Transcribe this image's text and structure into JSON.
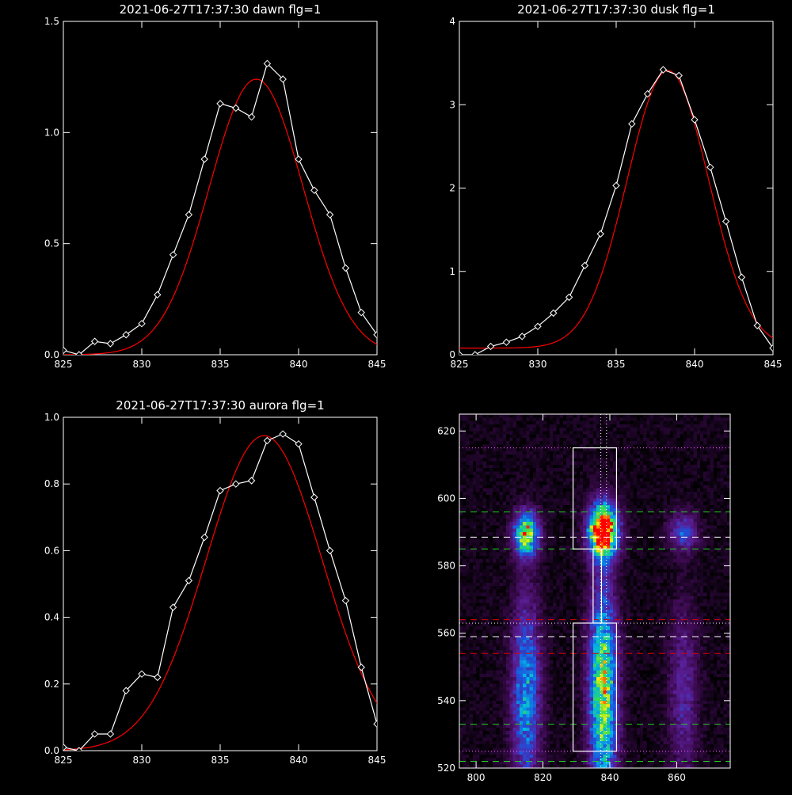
{
  "chart_data": [
    {
      "type": "line",
      "title": "2021-06-27T17:37:30 dawn flg=1",
      "xlim": [
        825,
        845
      ],
      "ylim": [
        0,
        1.5
      ],
      "xticks": [
        "825",
        "830",
        "835",
        "840",
        "845"
      ],
      "yticks": [
        "0.0",
        "0.5",
        "1.0",
        "1.5"
      ],
      "xtick_values": [
        825,
        830,
        835,
        840,
        845
      ],
      "ytick_values": [
        0,
        0.5,
        1.0,
        1.5
      ],
      "series": [
        {
          "color": "#ffffff",
          "marker": "diamond",
          "x": [
            825,
            826,
            827,
            828,
            829,
            830,
            831,
            832,
            833,
            834,
            835,
            836,
            837,
            838,
            839,
            840,
            841,
            842,
            843,
            844,
            845
          ],
          "y": [
            0.02,
            0.0,
            0.06,
            0.05,
            0.09,
            0.14,
            0.27,
            0.45,
            0.63,
            0.88,
            1.13,
            1.11,
            1.07,
            1.31,
            1.24,
            0.88,
            0.74,
            0.63,
            0.39,
            0.19,
            0.09
          ]
        },
        {
          "color": "#ff0000",
          "marker": "none",
          "fit": "gaussian",
          "amp": 1.24,
          "mu": 837.3,
          "sigma": 3.0,
          "base": 0.0
        }
      ]
    },
    {
      "type": "line",
      "title": "2021-06-27T17:37:30 dusk flg=1",
      "xlim": [
        825,
        845
      ],
      "ylim": [
        0,
        4
      ],
      "xticks": [
        "825",
        "830",
        "835",
        "840",
        "845"
      ],
      "yticks": [
        "0",
        "1",
        "2",
        "3",
        "4"
      ],
      "xtick_values": [
        825,
        830,
        835,
        840,
        845
      ],
      "ytick_values": [
        0,
        1,
        2,
        3,
        4
      ],
      "series": [
        {
          "color": "#ffffff",
          "marker": "diamond",
          "x": [
            825,
            826,
            827,
            828,
            829,
            830,
            831,
            832,
            833,
            834,
            835,
            836,
            837,
            838,
            839,
            840,
            841,
            842,
            843,
            844,
            845
          ],
          "y": [
            0.0,
            0.0,
            0.1,
            0.15,
            0.22,
            0.34,
            0.5,
            0.69,
            1.07,
            1.45,
            2.03,
            2.77,
            3.13,
            3.42,
            3.35,
            2.82,
            2.25,
            1.6,
            0.93,
            0.35,
            0.08
          ]
        },
        {
          "color": "#ff0000",
          "marker": "none",
          "fit": "gaussian",
          "amp": 3.33,
          "mu": 838.3,
          "sigma": 2.6,
          "base": 0.08
        }
      ]
    },
    {
      "type": "line",
      "title": "2021-06-27T17:37:30 aurora flg=1",
      "xlim": [
        825,
        845
      ],
      "ylim": [
        0,
        1.0
      ],
      "xticks": [
        "825",
        "830",
        "835",
        "840",
        "845"
      ],
      "yticks": [
        "0.0",
        "0.2",
        "0.4",
        "0.6",
        "0.8",
        "1.0"
      ],
      "xtick_values": [
        825,
        830,
        835,
        840,
        845
      ],
      "ytick_values": [
        0,
        0.2,
        0.4,
        0.6,
        0.8,
        1.0
      ],
      "series": [
        {
          "color": "#ffffff",
          "marker": "diamond",
          "x": [
            825,
            826,
            827,
            828,
            829,
            830,
            831,
            832,
            833,
            834,
            835,
            836,
            837,
            838,
            839,
            840,
            841,
            842,
            843,
            844,
            845
          ],
          "y": [
            0.01,
            0.0,
            0.05,
            0.05,
            0.18,
            0.23,
            0.22,
            0.43,
            0.51,
            0.64,
            0.78,
            0.8,
            0.81,
            0.93,
            0.95,
            0.92,
            0.76,
            0.6,
            0.45,
            0.25,
            0.08
          ]
        },
        {
          "color": "#ff0000",
          "marker": "none",
          "fit": "gaussian",
          "amp": 0.945,
          "mu": 837.8,
          "sigma": 3.7,
          "base": 0.0
        }
      ]
    },
    {
      "type": "heatmap",
      "xlim": [
        795,
        876
      ],
      "ylim": [
        520,
        625
      ],
      "xticks": [
        "800",
        "820",
        "840",
        "860"
      ],
      "yticks": [
        "520",
        "540",
        "560",
        "580",
        "600",
        "620"
      ],
      "xtick_values": [
        800,
        820,
        840,
        860
      ],
      "ytick_values": [
        520,
        540,
        560,
        580,
        600,
        620
      ],
      "colormap": [
        "#000000",
        "#3c0a50",
        "#5a1e96",
        "#1e50dc",
        "#00b4e6",
        "#32dc5a",
        "#f0f000",
        "#ff0000"
      ],
      "emission_lines": [
        {
          "x": 815,
          "y": 589.5,
          "sx": 2.6,
          "sy": 4.5,
          "peak": 0.8
        },
        {
          "x": 838,
          "y": 590.5,
          "sx": 3.0,
          "sy": 5.5,
          "peak": 1.15
        },
        {
          "x": 862,
          "y": 590.0,
          "sx": 3.0,
          "sy": 4.0,
          "peak": 0.35
        },
        {
          "x": 815,
          "y": 542.0,
          "sx": 3.0,
          "sy": 20.0,
          "peak": 0.5
        },
        {
          "x": 838,
          "y": 543.0,
          "sx": 3.0,
          "sy": 22.0,
          "peak": 0.75
        },
        {
          "x": 862,
          "y": 542.0,
          "sx": 3.0,
          "sy": 18.0,
          "peak": 0.25
        }
      ],
      "boxes": [
        {
          "x0": 829,
          "x1": 842,
          "y0": 585,
          "y1": 615
        },
        {
          "x0": 829,
          "x1": 842,
          "y0": 525,
          "y1": 563
        },
        {
          "x0": 835,
          "x1": 837.5,
          "y0": 563,
          "y1": 585
        }
      ],
      "hlines": [
        {
          "y": 615,
          "color": "#ff66ff",
          "style": "dotted"
        },
        {
          "y": 596,
          "color": "#22cc22",
          "style": "dashed"
        },
        {
          "y": 588.5,
          "color": "#ffffff",
          "style": "dashed"
        },
        {
          "y": 585,
          "color": "#22cc22",
          "style": "dashed"
        },
        {
          "y": 564,
          "color": "#dd0000",
          "style": "dashed"
        },
        {
          "y": 563,
          "color": "#ffffff",
          "style": "dotted"
        },
        {
          "y": 559,
          "color": "#ffffff",
          "style": "dashed"
        },
        {
          "y": 554,
          "color": "#dd0000",
          "style": "dashed"
        },
        {
          "y": 533,
          "color": "#22cc22",
          "style": "dashed"
        },
        {
          "y": 525,
          "color": "#ff66ff",
          "style": "dotted"
        },
        {
          "y": 522,
          "color": "#22cc22",
          "style": "dashed"
        }
      ],
      "vlines": [
        {
          "x": 837.3,
          "color": "#ffffff",
          "style": "dotted"
        },
        {
          "x": 839.0,
          "color": "#ffffff",
          "style": "dotted"
        }
      ]
    }
  ]
}
